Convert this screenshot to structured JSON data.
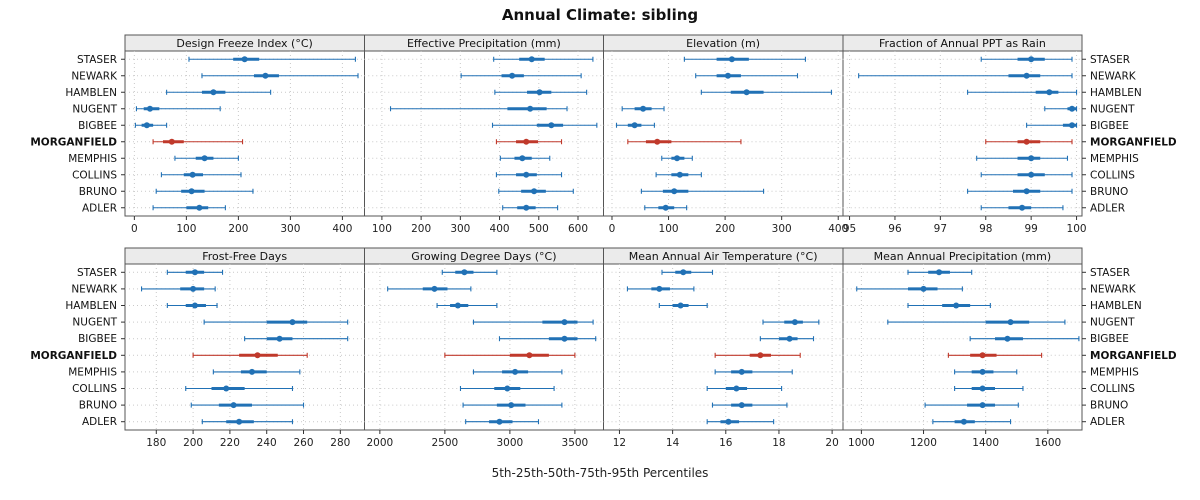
{
  "title": "Annual Climate: sibling",
  "caption": "5th-25th-50th-75th-95th Percentiles",
  "colors": {
    "normal": "#2171b5",
    "highlight": "#c0392b",
    "strip_bg": "#ebebeb",
    "grid": "#c9c9c9",
    "border": "#555555"
  },
  "chart_data": {
    "type": "dotplot-intervals",
    "percentiles": [
      5,
      25,
      50,
      75,
      95
    ],
    "highlight": "MORGANFIELD",
    "stations": [
      "STASER",
      "NEWARK",
      "HAMBLEN",
      "NUGENT",
      "BIGBEE",
      "MORGANFIELD",
      "MEMPHIS",
      "COLLINS",
      "BRUNO",
      "ADLER"
    ],
    "panels": [
      {
        "title": "Design Freeze Index (°C)",
        "xlim": [
          -18,
          442
        ],
        "ticks": [
          0,
          100,
          200,
          300,
          400
        ],
        "values": [
          [
            105,
            190,
            212,
            240,
            425
          ],
          [
            130,
            230,
            252,
            278,
            430
          ],
          [
            62,
            130,
            152,
            175,
            262
          ],
          [
            4,
            18,
            30,
            48,
            165
          ],
          [
            2,
            14,
            24,
            36,
            62
          ],
          [
            36,
            55,
            72,
            95,
            208
          ],
          [
            78,
            118,
            135,
            152,
            200
          ],
          [
            52,
            95,
            112,
            132,
            205
          ],
          [
            42,
            90,
            110,
            135,
            228
          ],
          [
            36,
            100,
            125,
            142,
            175
          ]
        ]
      },
      {
        "title": "Effective Precipitation (mm)",
        "xlim": [
          55,
          665
        ],
        "ticks": [
          100,
          200,
          300,
          400,
          500,
          600
        ],
        "values": [
          [
            385,
            450,
            482,
            515,
            638
          ],
          [
            302,
            405,
            432,
            462,
            608
          ],
          [
            388,
            470,
            502,
            532,
            622
          ],
          [
            122,
            420,
            478,
            520,
            572
          ],
          [
            382,
            495,
            532,
            562,
            648
          ],
          [
            392,
            442,
            468,
            498,
            558
          ],
          [
            402,
            438,
            458,
            482,
            528
          ],
          [
            392,
            442,
            468,
            495,
            558
          ],
          [
            398,
            455,
            488,
            518,
            588
          ],
          [
            408,
            445,
            468,
            492,
            548
          ]
        ]
      },
      {
        "title": "Elevation (m)",
        "xlim": [
          -15,
          408
        ],
        "ticks": [
          0,
          100,
          200,
          300,
          400
        ],
        "values": [
          [
            128,
            185,
            212,
            242,
            342
          ],
          [
            148,
            185,
            205,
            228,
            328
          ],
          [
            158,
            210,
            238,
            268,
            388
          ],
          [
            18,
            40,
            55,
            70,
            92
          ],
          [
            8,
            28,
            40,
            52,
            75
          ],
          [
            28,
            60,
            80,
            105,
            228
          ],
          [
            88,
            105,
            115,
            128,
            142
          ],
          [
            78,
            105,
            120,
            135,
            158
          ],
          [
            52,
            90,
            110,
            135,
            268
          ],
          [
            58,
            82,
            95,
            110,
            132
          ]
        ]
      },
      {
        "title": "Fraction of Annual PPT as Rain",
        "xlim": [
          94.85,
          100.12
        ],
        "ticks": [
          95,
          96,
          97,
          98,
          99,
          100
        ],
        "values": [
          [
            97.9,
            98.7,
            99.0,
            99.3,
            99.9
          ],
          [
            95.2,
            98.5,
            98.9,
            99.2,
            99.9
          ],
          [
            97.6,
            99.1,
            99.4,
            99.6,
            100.0
          ],
          [
            99.3,
            99.8,
            99.9,
            100.0,
            100.0
          ],
          [
            98.9,
            99.7,
            99.9,
            100.0,
            100.0
          ],
          [
            98.0,
            98.7,
            98.9,
            99.2,
            99.9
          ],
          [
            97.8,
            98.7,
            99.0,
            99.2,
            99.8
          ],
          [
            97.9,
            98.7,
            99.0,
            99.3,
            99.9
          ],
          [
            97.6,
            98.6,
            98.9,
            99.2,
            99.9
          ],
          [
            97.9,
            98.5,
            98.8,
            99.0,
            99.7
          ]
        ]
      },
      {
        "title": "Frost-Free Days",
        "xlim": [
          163,
          293
        ],
        "ticks": [
          180,
          200,
          220,
          240,
          260,
          280
        ],
        "values": [
          [
            186,
            196,
            201,
            206,
            216
          ],
          [
            172,
            193,
            200,
            206,
            212
          ],
          [
            186,
            196,
            201,
            207,
            213
          ],
          [
            206,
            240,
            254,
            262,
            284
          ],
          [
            228,
            240,
            247,
            254,
            284
          ],
          [
            200,
            225,
            235,
            246,
            262
          ],
          [
            211,
            226,
            232,
            240,
            258
          ],
          [
            196,
            210,
            218,
            228,
            254
          ],
          [
            199,
            214,
            222,
            232,
            260
          ],
          [
            205,
            218,
            225,
            233,
            254
          ]
        ]
      },
      {
        "title": "Growing Degree Days (°C)",
        "xlim": [
          1880,
          3720
        ],
        "ticks": [
          2000,
          2500,
          3000,
          3500
        ],
        "values": [
          [
            2480,
            2580,
            2650,
            2720,
            2900
          ],
          [
            2060,
            2330,
            2420,
            2520,
            2700
          ],
          [
            2440,
            2540,
            2600,
            2680,
            2900
          ],
          [
            2720,
            3250,
            3420,
            3520,
            3640
          ],
          [
            2920,
            3300,
            3420,
            3520,
            3660
          ],
          [
            2500,
            3000,
            3150,
            3300,
            3500
          ],
          [
            2720,
            2940,
            3040,
            3140,
            3400
          ],
          [
            2620,
            2880,
            2980,
            3080,
            3340
          ],
          [
            2640,
            2900,
            3010,
            3120,
            3400
          ],
          [
            2660,
            2840,
            2920,
            3020,
            3220
          ]
        ]
      },
      {
        "title": "Mean Annual Air Temperature (°C)",
        "xlim": [
          11.4,
          20.4
        ],
        "ticks": [
          12,
          14,
          16,
          18,
          20
        ],
        "values": [
          [
            13.6,
            14.1,
            14.4,
            14.7,
            15.5
          ],
          [
            12.3,
            13.2,
            13.5,
            13.9,
            14.8
          ],
          [
            13.5,
            14.0,
            14.3,
            14.6,
            15.3
          ],
          [
            17.4,
            18.2,
            18.6,
            18.9,
            19.5
          ],
          [
            17.3,
            18.0,
            18.4,
            18.7,
            19.3
          ],
          [
            15.6,
            16.9,
            17.3,
            17.7,
            18.8
          ],
          [
            15.6,
            16.2,
            16.6,
            17.0,
            18.5
          ],
          [
            15.3,
            16.0,
            16.4,
            16.8,
            18.1
          ],
          [
            15.5,
            16.2,
            16.6,
            17.0,
            18.3
          ],
          [
            15.3,
            15.8,
            16.1,
            16.5,
            17.8
          ]
        ]
      },
      {
        "title": "Mean Annual Precipitation (mm)",
        "xlim": [
          940,
          1710
        ],
        "ticks": [
          1000,
          1200,
          1400,
          1600
        ],
        "values": [
          [
            1150,
            1215,
            1250,
            1285,
            1355
          ],
          [
            985,
            1150,
            1200,
            1245,
            1325
          ],
          [
            1150,
            1260,
            1305,
            1350,
            1415
          ],
          [
            1085,
            1400,
            1480,
            1540,
            1655
          ],
          [
            1350,
            1430,
            1470,
            1520,
            1700
          ],
          [
            1280,
            1350,
            1390,
            1435,
            1580
          ],
          [
            1300,
            1355,
            1390,
            1425,
            1500
          ],
          [
            1300,
            1355,
            1390,
            1430,
            1520
          ],
          [
            1205,
            1340,
            1390,
            1430,
            1505
          ],
          [
            1230,
            1300,
            1330,
            1365,
            1480
          ]
        ]
      }
    ]
  }
}
